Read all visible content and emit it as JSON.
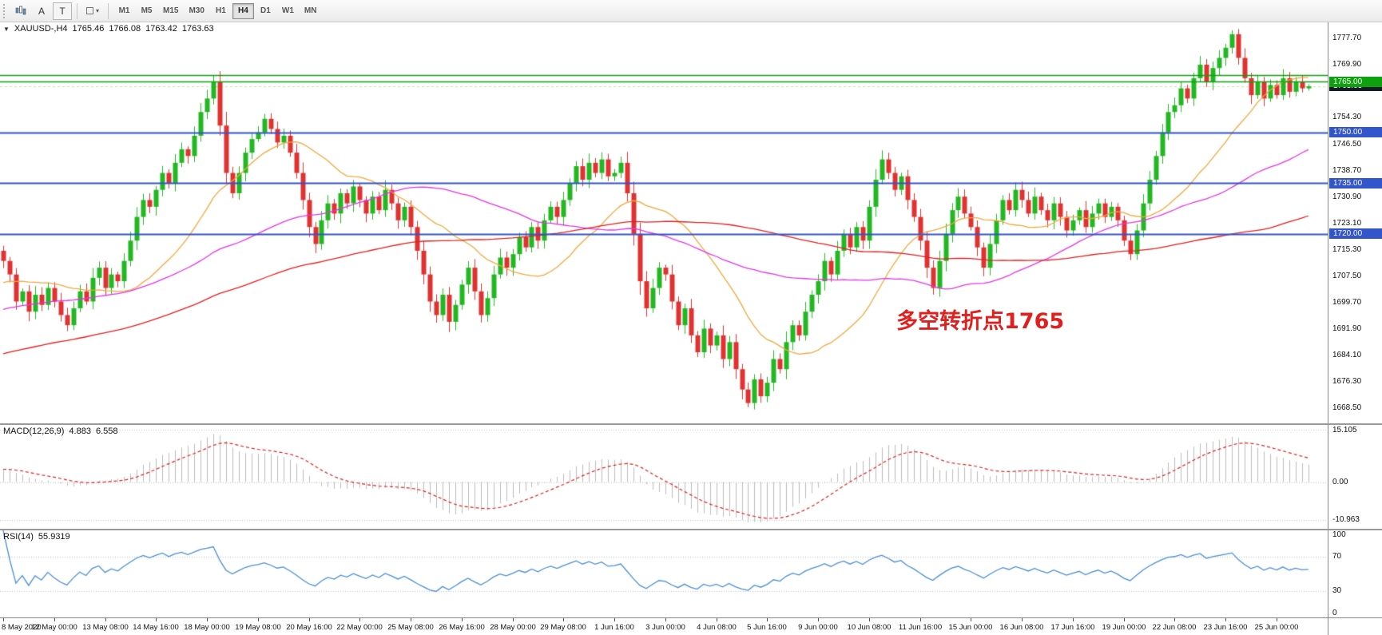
{
  "toolbar": {
    "tool_a": "A",
    "tool_t": "T",
    "timeframes": [
      "M1",
      "M5",
      "M15",
      "M30",
      "H1",
      "H4",
      "D1",
      "W1",
      "MN"
    ],
    "active_timeframe": "H4"
  },
  "chart": {
    "title": {
      "caret": "▼",
      "symbol": "XAUUSD-,H4",
      "open": "1765.46",
      "high": "1766.08",
      "low": "1763.42",
      "close": "1763.63"
    },
    "annotation": {
      "text": "多空转折点1765",
      "color": "#e01f1f"
    },
    "y_range": {
      "max": 1782.5,
      "min": 1664.0
    },
    "price_ticks": [
      "1777.70",
      "1769.90",
      "1754.30",
      "1746.50",
      "1738.70",
      "1730.90",
      "1723.10",
      "1715.30",
      "1707.50",
      "1699.70",
      "1691.90",
      "1684.10",
      "1676.30",
      "1668.50"
    ],
    "hlines": [
      {
        "price": 1766.9,
        "color": "#0fa00f",
        "width": 1.6
      },
      {
        "price": 1765.0,
        "color": "#0fa00f",
        "width": 1.6
      },
      {
        "price": 1750.0,
        "color": "#3355cc",
        "width": 2
      },
      {
        "price": 1735.0,
        "color": "#3355cc",
        "width": 2
      },
      {
        "price": 1720.0,
        "color": "#3355cc",
        "width": 2
      }
    ],
    "price_badges": [
      {
        "label": "1765.00",
        "price": 1765.0,
        "type": "green"
      },
      {
        "label": "1763.63",
        "price": 1763.63,
        "type": "current"
      },
      {
        "label": "1750.00",
        "price": 1750.0,
        "type": "blue"
      },
      {
        "label": "1735.00",
        "price": 1735.0,
        "type": "blue"
      },
      {
        "label": "1720.00",
        "price": 1720.0,
        "type": "blue"
      }
    ],
    "current_price": 1763.63
  },
  "chart_data": {
    "type": "candlestick",
    "symbol": "XAUUSD",
    "timeframe": "H4",
    "first_open": 1715,
    "closes": [
      1712,
      1708,
      1700,
      1703,
      1697,
      1702,
      1699,
      1704,
      1700,
      1696,
      1693,
      1698,
      1703,
      1700,
      1707,
      1710,
      1704,
      1708,
      1706,
      1712,
      1718,
      1725,
      1730,
      1728,
      1733,
      1738,
      1735,
      1741,
      1745,
      1743,
      1749,
      1756,
      1760,
      1765,
      1752,
      1738,
      1732,
      1738,
      1744,
      1748,
      1750,
      1754,
      1751,
      1747,
      1749,
      1744,
      1738,
      1730,
      1722,
      1717,
      1724,
      1729,
      1726,
      1732,
      1729,
      1734,
      1730,
      1726,
      1731,
      1727,
      1733,
      1729,
      1724,
      1728,
      1722,
      1715,
      1708,
      1700,
      1696,
      1702,
      1694,
      1699,
      1705,
      1710,
      1703,
      1696,
      1701,
      1708,
      1713,
      1710,
      1714,
      1719,
      1716,
      1722,
      1718,
      1724,
      1728,
      1725,
      1730,
      1735,
      1740,
      1736,
      1741,
      1738,
      1742,
      1737,
      1738,
      1741,
      1732,
      1720,
      1706,
      1698,
      1704,
      1710,
      1708,
      1700,
      1693,
      1698,
      1690,
      1685,
      1692,
      1687,
      1690,
      1683,
      1688,
      1680,
      1674,
      1670,
      1677,
      1672,
      1676,
      1683,
      1680,
      1688,
      1693,
      1690,
      1697,
      1702,
      1706,
      1712,
      1708,
      1715,
      1720,
      1716,
      1722,
      1718,
      1728,
      1736,
      1742,
      1738,
      1733,
      1737,
      1730,
      1725,
      1718,
      1710,
      1704,
      1712,
      1720,
      1727,
      1731,
      1726,
      1722,
      1716,
      1710,
      1717,
      1724,
      1730,
      1727,
      1733,
      1730,
      1726,
      1731,
      1727,
      1724,
      1729,
      1725,
      1721,
      1724,
      1727,
      1722,
      1726,
      1729,
      1725,
      1728,
      1724,
      1718,
      1714,
      1721,
      1729,
      1736,
      1743,
      1750,
      1756,
      1758,
      1763,
      1760,
      1766,
      1770,
      1765,
      1769,
      1772,
      1775,
      1779,
      1772,
      1766,
      1761,
      1765,
      1760,
      1764,
      1761,
      1766,
      1762,
      1765,
      1763,
      1763.63
    ],
    "time_labels": [
      "8 May 2020",
      "12 May 00:00",
      "13 May 08:00",
      "14 May 16:00",
      "18 May 00:00",
      "19 May 08:00",
      "20 May 16:00",
      "22 May 00:00",
      "25 May 08:00",
      "26 May 16:00",
      "28 May 00:00",
      "29 May 08:00",
      "1 Jun 16:00",
      "3 Jun 00:00",
      "4 Jun 08:00",
      "5 Jun 16:00",
      "9 Jun 00:00",
      "10 Jun 08:00",
      "11 Jun 16:00",
      "15 Jun 00:00",
      "16 Jun 08:00",
      "17 Jun 16:00",
      "19 Jun 00:00",
      "22 Jun 08:00",
      "23 Jun 16:00",
      "25 Jun 00:00"
    ],
    "bars_per_label": 8,
    "moving_averages": [
      {
        "name": "MA20",
        "period": 20,
        "color": "#efa93c"
      },
      {
        "name": "MA50",
        "period": 50,
        "color": "#e236e2"
      },
      {
        "name": "MA100",
        "period": 100,
        "color": "#e02020"
      }
    ]
  },
  "macd": {
    "label": "MACD(12,26,9)",
    "value_main": "4.883",
    "value_signal": "6.558",
    "axis": [
      {
        "label": "15.105",
        "value": 15.105
      },
      {
        "label": "0.00",
        "value": 0
      },
      {
        "label": "-10.963",
        "value": -10.963
      }
    ],
    "range": {
      "max": 16.5,
      "min": -13.5
    }
  },
  "rsi": {
    "label": "RSI(14)",
    "value": "55.9319",
    "axis": [
      {
        "label": "100",
        "value": 100
      },
      {
        "label": "70",
        "value": 70
      },
      {
        "label": "30",
        "value": 30
      },
      {
        "label": "0",
        "value": 0
      }
    ],
    "levels": [
      70,
      30
    ]
  },
  "colors": {
    "up": "#22b822",
    "down": "#e03232",
    "hline_green": "#0fa00f",
    "hline_blue": "#3355cc",
    "badge_current": "#151a28",
    "macd_hist": "#bdbdbd",
    "macd_signal": "#e02020",
    "rsi_line": "#4a8fd4",
    "bid_line": "#d8d8d8"
  }
}
